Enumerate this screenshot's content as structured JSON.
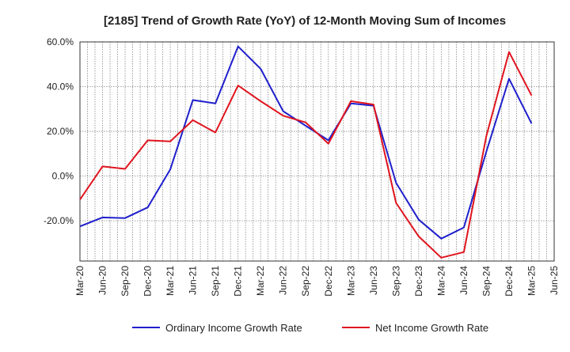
{
  "chart_data": {
    "type": "line",
    "title": "[2185]  Trend of Growth Rate (YoY) of 12-Month Moving Sum of Incomes",
    "xlabel": "",
    "ylabel": "",
    "ylim": [
      -38,
      60
    ],
    "yticks": [
      60,
      40,
      20,
      0,
      -20
    ],
    "ytick_labels": [
      "60.0%",
      "40.0%",
      "20.0%",
      "0.0%",
      "-20.0%"
    ],
    "x_labels": [
      "Mar-20",
      "Jun-20",
      "Sep-20",
      "Dec-20",
      "Mar-21",
      "Jun-21",
      "Sep-21",
      "Dec-21",
      "Mar-22",
      "Jun-22",
      "Sep-22",
      "Dec-22",
      "Mar-23",
      "Jun-23",
      "Sep-23",
      "Dec-23",
      "Mar-24",
      "Jun-24",
      "Sep-24",
      "Dec-24",
      "Mar-25",
      "Jun-25"
    ],
    "grid": true,
    "legend_position": "bottom",
    "series": [
      {
        "name": "Ordinary Income Growth Rate",
        "color": "#1f1fcc",
        "values": [
          -22.5,
          -18.5,
          -18.8,
          -14,
          3,
          34,
          32.5,
          58,
          48,
          29,
          22.5,
          16,
          32.5,
          31.5,
          -3,
          -19.5,
          -28,
          -23,
          11,
          43.5,
          23.5,
          null
        ]
      },
      {
        "name": "Net Income Growth Rate",
        "color": "#e0141e",
        "values": [
          -10.5,
          4.3,
          3.2,
          16,
          15.5,
          25,
          19.5,
          40.5,
          33.5,
          27,
          24,
          14.5,
          33.5,
          32,
          -12,
          -27,
          -36.5,
          -34,
          18,
          55.5,
          36,
          null
        ]
      }
    ]
  }
}
